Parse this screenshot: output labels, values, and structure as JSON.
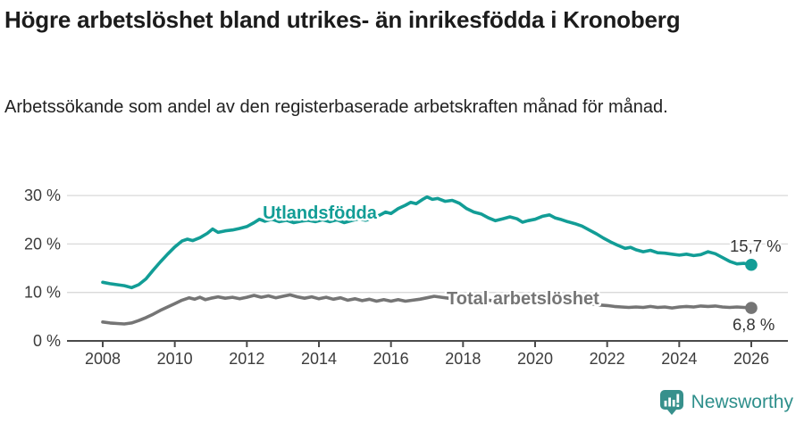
{
  "header": {
    "title": "Högre arbetslöshet bland utrikes- än inrikesfödda i Kronoberg",
    "subtitle": "Arbetssökande som andel av den registerbaserade arbetskraften månad för månad."
  },
  "chart_data": {
    "type": "line",
    "title": "Högre arbetslöshet bland utrikes- än inrikesfödda i Kronoberg",
    "subtitle": "Arbetssökande som andel av den registerbaserade arbetskraften månad för månad.",
    "xlabel": "",
    "ylabel": "",
    "x_ticks": [
      2008,
      2010,
      2012,
      2014,
      2016,
      2018,
      2020,
      2022,
      2024,
      2026
    ],
    "y_ticks": [
      0,
      10,
      20,
      30
    ],
    "y_tick_suffix": " %",
    "xlim": [
      2007,
      2027
    ],
    "ylim": [
      0,
      32.5
    ],
    "grid": true,
    "series": [
      {
        "name": "Utlandsfödda",
        "color": "#129d96",
        "end_label": "15,7 %",
        "end_value": 15.7,
        "points": [
          [
            2008.0,
            12.1
          ],
          [
            2008.2,
            11.8
          ],
          [
            2008.4,
            11.6
          ],
          [
            2008.6,
            11.4
          ],
          [
            2008.8,
            11.0
          ],
          [
            2009.0,
            11.6
          ],
          [
            2009.2,
            12.8
          ],
          [
            2009.4,
            14.6
          ],
          [
            2009.6,
            16.3
          ],
          [
            2009.8,
            17.9
          ],
          [
            2010.0,
            19.4
          ],
          [
            2010.2,
            20.6
          ],
          [
            2010.35,
            21.0
          ],
          [
            2010.5,
            20.7
          ],
          [
            2010.7,
            21.3
          ],
          [
            2010.9,
            22.2
          ],
          [
            2011.05,
            23.1
          ],
          [
            2011.2,
            22.4
          ],
          [
            2011.4,
            22.7
          ],
          [
            2011.6,
            22.9
          ],
          [
            2011.8,
            23.2
          ],
          [
            2012.0,
            23.6
          ],
          [
            2012.2,
            24.4
          ],
          [
            2012.35,
            25.1
          ],
          [
            2012.5,
            24.7
          ],
          [
            2012.7,
            25.1
          ],
          [
            2012.9,
            24.6
          ],
          [
            2013.1,
            24.9
          ],
          [
            2013.3,
            24.4
          ],
          [
            2013.5,
            24.7
          ],
          [
            2013.7,
            24.9
          ],
          [
            2013.9,
            24.6
          ],
          [
            2014.1,
            25.0
          ],
          [
            2014.3,
            24.6
          ],
          [
            2014.5,
            25.0
          ],
          [
            2014.7,
            24.4
          ],
          [
            2014.9,
            24.8
          ],
          [
            2015.1,
            25.2
          ],
          [
            2015.3,
            24.9
          ],
          [
            2015.5,
            25.3
          ],
          [
            2015.7,
            26.0
          ],
          [
            2015.85,
            26.6
          ],
          [
            2016.0,
            26.3
          ],
          [
            2016.2,
            27.3
          ],
          [
            2016.4,
            28.0
          ],
          [
            2016.55,
            28.6
          ],
          [
            2016.7,
            28.3
          ],
          [
            2016.9,
            29.3
          ],
          [
            2017.0,
            29.7
          ],
          [
            2017.15,
            29.2
          ],
          [
            2017.3,
            29.4
          ],
          [
            2017.5,
            28.8
          ],
          [
            2017.7,
            29.0
          ],
          [
            2017.9,
            28.4
          ],
          [
            2018.1,
            27.3
          ],
          [
            2018.3,
            26.6
          ],
          [
            2018.5,
            26.2
          ],
          [
            2018.7,
            25.4
          ],
          [
            2018.9,
            24.8
          ],
          [
            2019.1,
            25.2
          ],
          [
            2019.3,
            25.6
          ],
          [
            2019.5,
            25.2
          ],
          [
            2019.65,
            24.5
          ],
          [
            2019.8,
            24.8
          ],
          [
            2020.0,
            25.1
          ],
          [
            2020.2,
            25.7
          ],
          [
            2020.4,
            26.0
          ],
          [
            2020.55,
            25.4
          ],
          [
            2020.7,
            25.1
          ],
          [
            2020.9,
            24.6
          ],
          [
            2021.1,
            24.2
          ],
          [
            2021.3,
            23.7
          ],
          [
            2021.5,
            22.9
          ],
          [
            2021.7,
            22.1
          ],
          [
            2021.9,
            21.2
          ],
          [
            2022.1,
            20.4
          ],
          [
            2022.3,
            19.7
          ],
          [
            2022.5,
            19.1
          ],
          [
            2022.65,
            19.3
          ],
          [
            2022.8,
            18.8
          ],
          [
            2023.0,
            18.4
          ],
          [
            2023.2,
            18.7
          ],
          [
            2023.4,
            18.2
          ],
          [
            2023.6,
            18.1
          ],
          [
            2023.8,
            17.9
          ],
          [
            2024.0,
            17.7
          ],
          [
            2024.2,
            17.9
          ],
          [
            2024.4,
            17.6
          ],
          [
            2024.6,
            17.8
          ],
          [
            2024.8,
            18.4
          ],
          [
            2025.0,
            18.0
          ],
          [
            2025.2,
            17.2
          ],
          [
            2025.4,
            16.4
          ],
          [
            2025.6,
            15.9
          ],
          [
            2025.8,
            16.0
          ],
          [
            2026.0,
            15.7
          ]
        ]
      },
      {
        "name": "Total arbetslöshet",
        "color": "#757575",
        "end_label": "6,8 %",
        "end_value": 6.8,
        "points": [
          [
            2008.0,
            3.9
          ],
          [
            2008.2,
            3.7
          ],
          [
            2008.4,
            3.6
          ],
          [
            2008.6,
            3.5
          ],
          [
            2008.8,
            3.7
          ],
          [
            2009.0,
            4.2
          ],
          [
            2009.2,
            4.8
          ],
          [
            2009.4,
            5.5
          ],
          [
            2009.6,
            6.3
          ],
          [
            2009.8,
            7.0
          ],
          [
            2010.0,
            7.7
          ],
          [
            2010.2,
            8.4
          ],
          [
            2010.4,
            8.9
          ],
          [
            2010.55,
            8.6
          ],
          [
            2010.7,
            9.0
          ],
          [
            2010.85,
            8.5
          ],
          [
            2011.0,
            8.8
          ],
          [
            2011.2,
            9.1
          ],
          [
            2011.4,
            8.8
          ],
          [
            2011.6,
            9.0
          ],
          [
            2011.8,
            8.7
          ],
          [
            2012.0,
            9.0
          ],
          [
            2012.2,
            9.4
          ],
          [
            2012.4,
            9.0
          ],
          [
            2012.6,
            9.3
          ],
          [
            2012.8,
            8.9
          ],
          [
            2013.0,
            9.2
          ],
          [
            2013.2,
            9.5
          ],
          [
            2013.4,
            9.1
          ],
          [
            2013.6,
            8.8
          ],
          [
            2013.8,
            9.1
          ],
          [
            2014.0,
            8.7
          ],
          [
            2014.2,
            9.0
          ],
          [
            2014.4,
            8.6
          ],
          [
            2014.6,
            8.9
          ],
          [
            2014.8,
            8.4
          ],
          [
            2015.0,
            8.7
          ],
          [
            2015.2,
            8.3
          ],
          [
            2015.4,
            8.6
          ],
          [
            2015.6,
            8.2
          ],
          [
            2015.8,
            8.5
          ],
          [
            2016.0,
            8.2
          ],
          [
            2016.2,
            8.5
          ],
          [
            2016.4,
            8.2
          ],
          [
            2016.6,
            8.4
          ],
          [
            2016.8,
            8.6
          ],
          [
            2017.0,
            8.9
          ],
          [
            2017.2,
            9.2
          ],
          [
            2017.4,
            9.0
          ],
          [
            2017.6,
            8.8
          ],
          [
            2017.8,
            9.0
          ],
          [
            2018.0,
            8.8
          ],
          [
            2018.2,
            8.6
          ],
          [
            2018.4,
            8.4
          ],
          [
            2018.6,
            8.5
          ],
          [
            2018.8,
            8.3
          ],
          [
            2019.0,
            8.1
          ],
          [
            2019.2,
            8.0
          ],
          [
            2019.4,
            7.9
          ],
          [
            2019.6,
            7.8
          ],
          [
            2019.8,
            7.9
          ],
          [
            2020.0,
            8.0
          ],
          [
            2020.2,
            8.4
          ],
          [
            2020.4,
            8.7
          ],
          [
            2020.6,
            8.5
          ],
          [
            2020.8,
            8.3
          ],
          [
            2021.0,
            8.1
          ],
          [
            2021.2,
            8.0
          ],
          [
            2021.4,
            7.8
          ],
          [
            2021.6,
            7.6
          ],
          [
            2021.8,
            7.4
          ],
          [
            2022.0,
            7.3
          ],
          [
            2022.2,
            7.1
          ],
          [
            2022.4,
            7.0
          ],
          [
            2022.6,
            6.9
          ],
          [
            2022.8,
            7.0
          ],
          [
            2023.0,
            6.9
          ],
          [
            2023.2,
            7.1
          ],
          [
            2023.4,
            6.9
          ],
          [
            2023.6,
            7.0
          ],
          [
            2023.8,
            6.8
          ],
          [
            2024.0,
            7.0
          ],
          [
            2024.2,
            7.1
          ],
          [
            2024.4,
            7.0
          ],
          [
            2024.6,
            7.2
          ],
          [
            2024.8,
            7.1
          ],
          [
            2025.0,
            7.2
          ],
          [
            2025.2,
            7.0
          ],
          [
            2025.4,
            6.9
          ],
          [
            2025.6,
            7.0
          ],
          [
            2025.8,
            6.9
          ],
          [
            2026.0,
            6.8
          ]
        ]
      }
    ],
    "colors": {
      "grid": "#d9d9d9",
      "axis": "#4a4a4a",
      "tick_text": "#3c3c3c",
      "end_label_text": "#333333"
    }
  },
  "footer": {
    "brand": "Newsworthy",
    "brand_color": "#2e8f8b",
    "logo_icon": "bar-chart-pin-icon"
  }
}
